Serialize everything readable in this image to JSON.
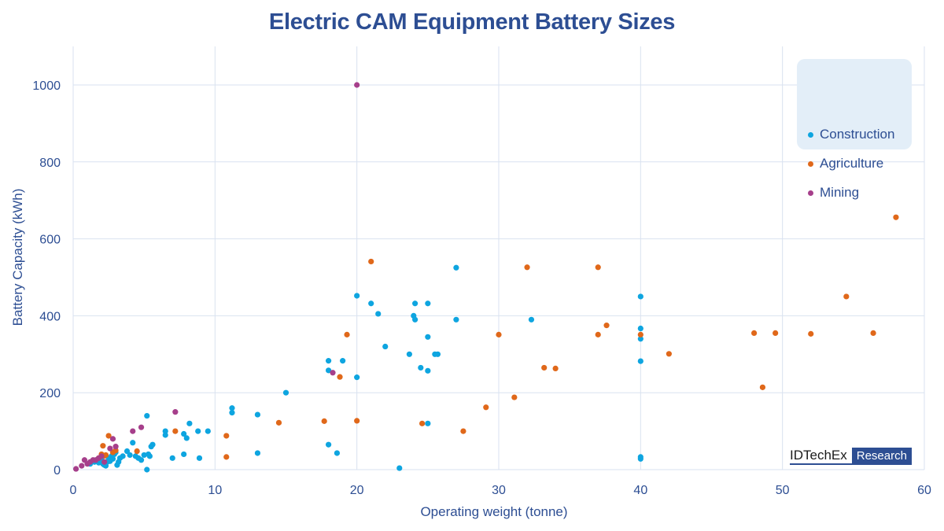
{
  "chart_data": {
    "type": "scatter",
    "title": "Electric CAM Equipment Battery Sizes",
    "xlabel": "Operating weight (tonne)",
    "ylabel": "Battery Capacity (kWh)",
    "xlim": [
      0,
      60
    ],
    "ylim": [
      0,
      1100
    ],
    "xticks": [
      0,
      10,
      20,
      30,
      40,
      50,
      60
    ],
    "yticks": [
      0,
      200,
      400,
      600,
      800,
      1000
    ],
    "grid": true,
    "legend_position": "top-right",
    "series": [
      {
        "name": "Construction",
        "color": "#0ea5e0",
        "points": [
          [
            1.2,
            15
          ],
          [
            1.5,
            20
          ],
          [
            1.8,
            18
          ],
          [
            2.0,
            25
          ],
          [
            2.1,
            15
          ],
          [
            2.2,
            12
          ],
          [
            2.3,
            10
          ],
          [
            2.4,
            20
          ],
          [
            2.5,
            30
          ],
          [
            2.6,
            22
          ],
          [
            2.7,
            35
          ],
          [
            2.8,
            28
          ],
          [
            2.9,
            40
          ],
          [
            3.0,
            45
          ],
          [
            3.1,
            12
          ],
          [
            3.2,
            20
          ],
          [
            3.3,
            30
          ],
          [
            3.5,
            35
          ],
          [
            3.8,
            48
          ],
          [
            4.0,
            38
          ],
          [
            4.2,
            70
          ],
          [
            4.4,
            35
          ],
          [
            4.6,
            30
          ],
          [
            4.8,
            25
          ],
          [
            5.0,
            38
          ],
          [
            5.2,
            0
          ],
          [
            5.3,
            40
          ],
          [
            5.4,
            35
          ],
          [
            5.5,
            60
          ],
          [
            5.6,
            65
          ],
          [
            5.2,
            140
          ],
          [
            6.5,
            90
          ],
          [
            6.5,
            100
          ],
          [
            7.0,
            30
          ],
          [
            7.8,
            40
          ],
          [
            7.8,
            93
          ],
          [
            8.0,
            82
          ],
          [
            8.2,
            120
          ],
          [
            8.8,
            100
          ],
          [
            8.9,
            30
          ],
          [
            9.5,
            100
          ],
          [
            11.2,
            160
          ],
          [
            11.2,
            148
          ],
          [
            13.0,
            143
          ],
          [
            13.0,
            43
          ],
          [
            15.0,
            200
          ],
          [
            18.0,
            283
          ],
          [
            18.0,
            258
          ],
          [
            18.0,
            65
          ],
          [
            18.6,
            43
          ],
          [
            19.0,
            283
          ],
          [
            20.0,
            452
          ],
          [
            20.0,
            240
          ],
          [
            21.0,
            432
          ],
          [
            21.5,
            405
          ],
          [
            22.0,
            320
          ],
          [
            23.0,
            4
          ],
          [
            23.7,
            300
          ],
          [
            24.0,
            400
          ],
          [
            24.1,
            390
          ],
          [
            24.1,
            432
          ],
          [
            24.5,
            265
          ],
          [
            25.0,
            432
          ],
          [
            25.0,
            345
          ],
          [
            25.0,
            257
          ],
          [
            25.0,
            120
          ],
          [
            25.5,
            300
          ],
          [
            25.7,
            300
          ],
          [
            27.0,
            525
          ],
          [
            27.0,
            390
          ],
          [
            32.3,
            390
          ],
          [
            40.0,
            450
          ],
          [
            40.0,
            367
          ],
          [
            40.0,
            340
          ],
          [
            40.0,
            282
          ],
          [
            40.0,
            33
          ],
          [
            40.0,
            28
          ]
        ]
      },
      {
        "name": "Agriculture",
        "color": "#e0681a",
        "points": [
          [
            1.8,
            30
          ],
          [
            2.0,
            40
          ],
          [
            2.1,
            62
          ],
          [
            2.2,
            36
          ],
          [
            2.3,
            38
          ],
          [
            2.5,
            88
          ],
          [
            2.8,
            45
          ],
          [
            3.0,
            50
          ],
          [
            4.5,
            48
          ],
          [
            7.2,
            100
          ],
          [
            10.8,
            88
          ],
          [
            10.8,
            33
          ],
          [
            14.5,
            122
          ],
          [
            17.7,
            126
          ],
          [
            18.8,
            241
          ],
          [
            19.3,
            351
          ],
          [
            20.0,
            127
          ],
          [
            21.0,
            541
          ],
          [
            24.6,
            120
          ],
          [
            27.5,
            100
          ],
          [
            29.1,
            162
          ],
          [
            30.0,
            351
          ],
          [
            31.1,
            188
          ],
          [
            32.0,
            526
          ],
          [
            33.2,
            265
          ],
          [
            34.0,
            263
          ],
          [
            37.0,
            526
          ],
          [
            37.0,
            351
          ],
          [
            37.6,
            375
          ],
          [
            40.0,
            351
          ],
          [
            42.0,
            301
          ],
          [
            48.0,
            355
          ],
          [
            48.6,
            214
          ],
          [
            49.5,
            355
          ],
          [
            52.0,
            353
          ],
          [
            54.5,
            450
          ],
          [
            56.4,
            355
          ],
          [
            58.0,
            656
          ]
        ]
      },
      {
        "name": "Mining",
        "color": "#a63f8b",
        "points": [
          [
            0.2,
            2
          ],
          [
            0.6,
            10
          ],
          [
            0.8,
            25
          ],
          [
            1.0,
            15
          ],
          [
            1.2,
            20
          ],
          [
            1.4,
            25
          ],
          [
            1.6,
            25
          ],
          [
            1.8,
            30
          ],
          [
            2.0,
            35
          ],
          [
            2.2,
            20
          ],
          [
            2.6,
            55
          ],
          [
            2.8,
            80
          ],
          [
            3.0,
            60
          ],
          [
            4.2,
            100
          ],
          [
            4.8,
            110
          ],
          [
            7.2,
            150
          ],
          [
            18.3,
            252
          ],
          [
            20.0,
            1000
          ]
        ]
      }
    ]
  },
  "branding": {
    "name": "IDTechEx",
    "tag": "Research"
  }
}
